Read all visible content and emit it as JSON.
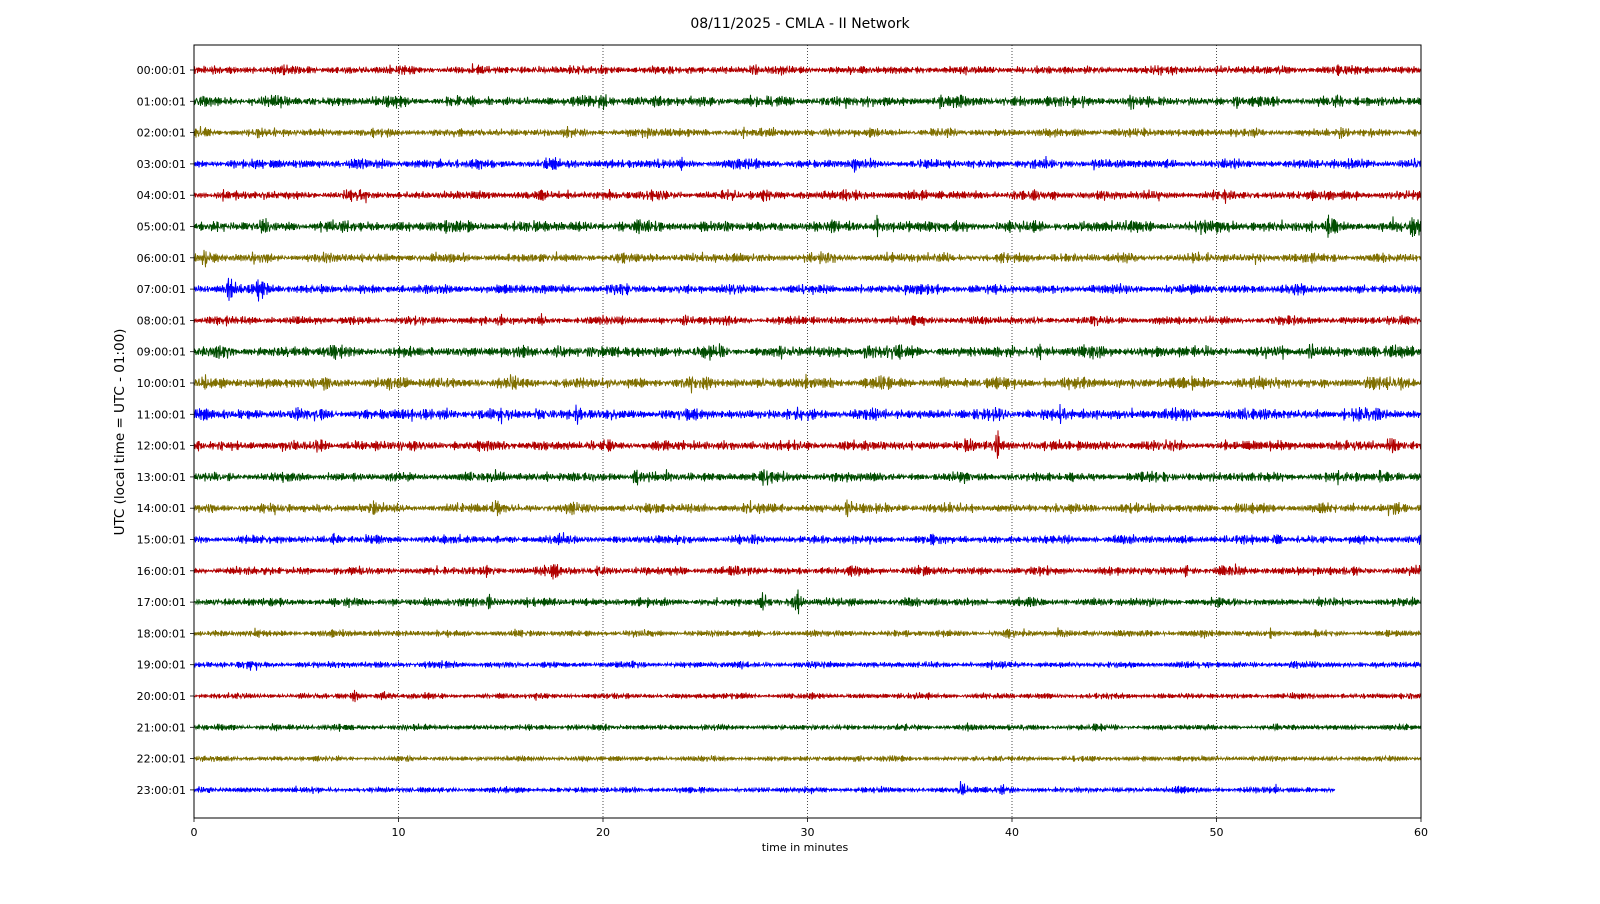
{
  "chart_data": {
    "type": "line",
    "title": "08/11/2025 - CMLA - II Network",
    "xlabel": "time in minutes",
    "ylabel": "UTC (local time = UTC - 01:00)",
    "xlim": [
      0,
      60
    ],
    "x_ticks": [
      0,
      10,
      20,
      30,
      40,
      50,
      60
    ],
    "grid": "vertical dotted lines at x ticks",
    "colors": [
      "#b10000",
      "#004d00",
      "#7f6f00",
      "#0000ff"
    ],
    "series": [
      {
        "name": "00:00:01",
        "x_end": 60,
        "amplitude": 0.9,
        "events": [
          {
            "t": 18.5,
            "amp": 1.4
          },
          {
            "t": 27.3,
            "amp": 1.3
          },
          {
            "t": 55.9,
            "amp": 1.4
          }
        ]
      },
      {
        "name": "01:00:01",
        "x_end": 60,
        "amplitude": 1.1,
        "events": [
          {
            "t": 19.9,
            "amp": 1.6
          },
          {
            "t": 36.5,
            "amp": 1.3
          },
          {
            "t": 51.0,
            "amp": 1.6
          },
          {
            "t": 45.8,
            "amp": 1.3
          }
        ]
      },
      {
        "name": "02:00:01",
        "x_end": 60,
        "amplitude": 0.9,
        "events": [
          {
            "t": 56.0,
            "amp": 1.5
          },
          {
            "t": 52.0,
            "amp": 1.3
          }
        ]
      },
      {
        "name": "03:00:01",
        "x_end": 60,
        "amplitude": 1.0,
        "events": [
          {
            "t": 32.2,
            "amp": 1.5
          },
          {
            "t": 44.0,
            "amp": 1.2
          },
          {
            "t": 56.5,
            "amp": 1.3
          }
        ]
      },
      {
        "name": "04:00:01",
        "x_end": 60,
        "amplitude": 1.0,
        "events": [
          {
            "t": 16.8,
            "amp": 1.3
          },
          {
            "t": 27.8,
            "amp": 1.3
          }
        ]
      },
      {
        "name": "05:00:01",
        "x_end": 60,
        "amplitude": 1.2,
        "events": [
          {
            "t": 3.3,
            "amp": 1.5
          },
          {
            "t": 33.3,
            "amp": 1.5
          },
          {
            "t": 55.5,
            "amp": 2.3
          },
          {
            "t": 59.6,
            "amp": 2.6
          }
        ]
      },
      {
        "name": "06:00:01",
        "x_end": 60,
        "amplitude": 1.0,
        "events": [
          {
            "t": 0.5,
            "amp": 2.4
          },
          {
            "t": 2.8,
            "amp": 1.5
          }
        ]
      },
      {
        "name": "07:00:01",
        "x_end": 60,
        "amplitude": 1.0,
        "events": [
          {
            "t": 1.7,
            "amp": 2.2
          },
          {
            "t": 3.2,
            "amp": 2.3
          },
          {
            "t": 34.8,
            "amp": 1.3
          }
        ]
      },
      {
        "name": "08:00:01",
        "x_end": 60,
        "amplitude": 0.9,
        "events": [
          {
            "t": 14.9,
            "amp": 1.3
          },
          {
            "t": 24.0,
            "amp": 1.3
          }
        ]
      },
      {
        "name": "09:00:01",
        "x_end": 60,
        "amplitude": 1.2,
        "events": [
          {
            "t": 17.8,
            "amp": 1.4
          },
          {
            "t": 32.9,
            "amp": 1.4
          },
          {
            "t": 41.3,
            "amp": 1.3
          },
          {
            "t": 54.6,
            "amp": 1.4
          }
        ]
      },
      {
        "name": "10:00:01",
        "x_end": 60,
        "amplitude": 1.2,
        "events": [
          {
            "t": 15.5,
            "amp": 1.4
          },
          {
            "t": 59.0,
            "amp": 1.4
          }
        ]
      },
      {
        "name": "11:00:01",
        "x_end": 60,
        "amplitude": 1.2,
        "events": [
          {
            "t": 16.8,
            "amp": 1.6
          },
          {
            "t": 18.7,
            "amp": 1.6
          },
          {
            "t": 42.3,
            "amp": 1.4
          }
        ]
      },
      {
        "name": "12:00:01",
        "x_end": 60,
        "amplitude": 1.1,
        "events": [
          {
            "t": 39.2,
            "amp": 1.9
          },
          {
            "t": 58.5,
            "amp": 2.2
          },
          {
            "t": 6.0,
            "amp": 1.3
          }
        ]
      },
      {
        "name": "13:00:01",
        "x_end": 60,
        "amplitude": 1.0,
        "events": [
          {
            "t": 14.6,
            "amp": 1.6
          },
          {
            "t": 21.6,
            "amp": 1.8
          },
          {
            "t": 27.8,
            "amp": 2.4
          },
          {
            "t": 58.0,
            "amp": 1.4
          }
        ]
      },
      {
        "name": "14:00:01",
        "x_end": 60,
        "amplitude": 1.0,
        "events": [
          {
            "t": 8.8,
            "amp": 1.3
          },
          {
            "t": 14.7,
            "amp": 2.0
          },
          {
            "t": 31.9,
            "amp": 2.0
          },
          {
            "t": 58.5,
            "amp": 2.1
          }
        ]
      },
      {
        "name": "15:00:01",
        "x_end": 60,
        "amplitude": 0.9,
        "events": [
          {
            "t": 6.8,
            "amp": 1.3
          },
          {
            "t": 52.8,
            "amp": 1.2
          }
        ]
      },
      {
        "name": "16:00:01",
        "x_end": 60,
        "amplitude": 0.9,
        "events": [
          {
            "t": 17.6,
            "amp": 1.8
          },
          {
            "t": 19.8,
            "amp": 1.6
          },
          {
            "t": 48.4,
            "amp": 1.3
          }
        ]
      },
      {
        "name": "17:00:01",
        "x_end": 60,
        "amplitude": 0.9,
        "events": [
          {
            "t": 14.4,
            "amp": 1.9
          },
          {
            "t": 27.8,
            "amp": 1.8
          },
          {
            "t": 29.4,
            "amp": 2.4
          }
        ]
      },
      {
        "name": "18:00:01",
        "x_end": 60,
        "amplitude": 0.7,
        "events": [
          {
            "t": 39.8,
            "amp": 1.7
          },
          {
            "t": 42.3,
            "amp": 1.8
          },
          {
            "t": 52.6,
            "amp": 1.4
          }
        ]
      },
      {
        "name": "19:00:01",
        "x_end": 60,
        "amplitude": 0.7,
        "events": [
          {
            "t": 2.5,
            "amp": 1.2
          }
        ]
      },
      {
        "name": "20:00:01",
        "x_end": 60,
        "amplitude": 0.6,
        "events": [
          {
            "t": 7.8,
            "amp": 1.9
          },
          {
            "t": 9.3,
            "amp": 2.0
          }
        ]
      },
      {
        "name": "21:00:01",
        "x_end": 60,
        "amplitude": 0.6,
        "events": [
          {
            "t": 3.8,
            "amp": 1.4
          },
          {
            "t": 18.3,
            "amp": 1.3
          },
          {
            "t": 37.7,
            "amp": 1.3
          },
          {
            "t": 44.3,
            "amp": 1.3
          }
        ]
      },
      {
        "name": "22:00:01",
        "x_end": 60,
        "amplitude": 0.55,
        "events": [
          {
            "t": 32.3,
            "amp": 1.4
          },
          {
            "t": 43.8,
            "amp": 1.3
          }
        ]
      },
      {
        "name": "23:00:01",
        "x_end": 55.8,
        "amplitude": 0.6,
        "events": [
          {
            "t": 37.5,
            "amp": 2.9
          },
          {
            "t": 39.5,
            "amp": 2.0
          },
          {
            "t": 52.9,
            "amp": 1.4
          }
        ]
      }
    ]
  }
}
